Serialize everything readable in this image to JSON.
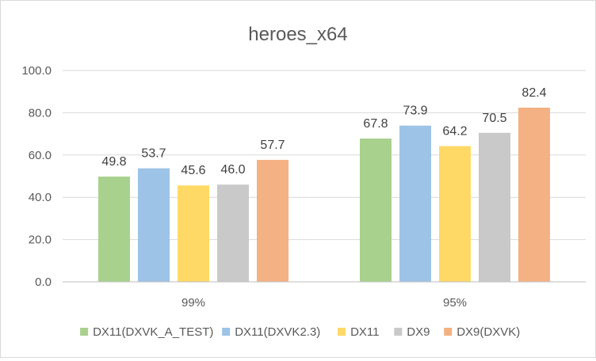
{
  "chart_data": {
    "type": "bar",
    "title": "heroes_x64",
    "xlabel": "",
    "ylabel": "",
    "categories": [
      "99%",
      "95%"
    ],
    "ylim": [
      0,
      100
    ],
    "yticks": [
      "0.0",
      "20.0",
      "40.0",
      "60.0",
      "80.0",
      "100.0"
    ],
    "grid": true,
    "legend_position": "bottom",
    "series": [
      {
        "name": "DX11(DXVK_A_TEST)",
        "color": "#a9d18e",
        "values": [
          49.8,
          67.8
        ],
        "labels": [
          "49.8",
          "67.8"
        ]
      },
      {
        "name": "DX11(DXVK2.3)",
        "color": "#9dc3e6",
        "values": [
          53.7,
          73.9
        ],
        "labels": [
          "53.7",
          "73.9"
        ]
      },
      {
        "name": "DX11",
        "color": "#ffd966",
        "values": [
          45.6,
          64.2
        ],
        "labels": [
          "45.6",
          "64.2"
        ]
      },
      {
        "name": "DX9",
        "color": "#c9c9c9",
        "values": [
          46.0,
          70.5
        ],
        "labels": [
          "46.0",
          "70.5"
        ]
      },
      {
        "name": "DX9(DXVK)",
        "color": "#f4b183",
        "values": [
          57.7,
          82.4
        ],
        "labels": [
          "57.7",
          "82.4"
        ]
      }
    ]
  }
}
